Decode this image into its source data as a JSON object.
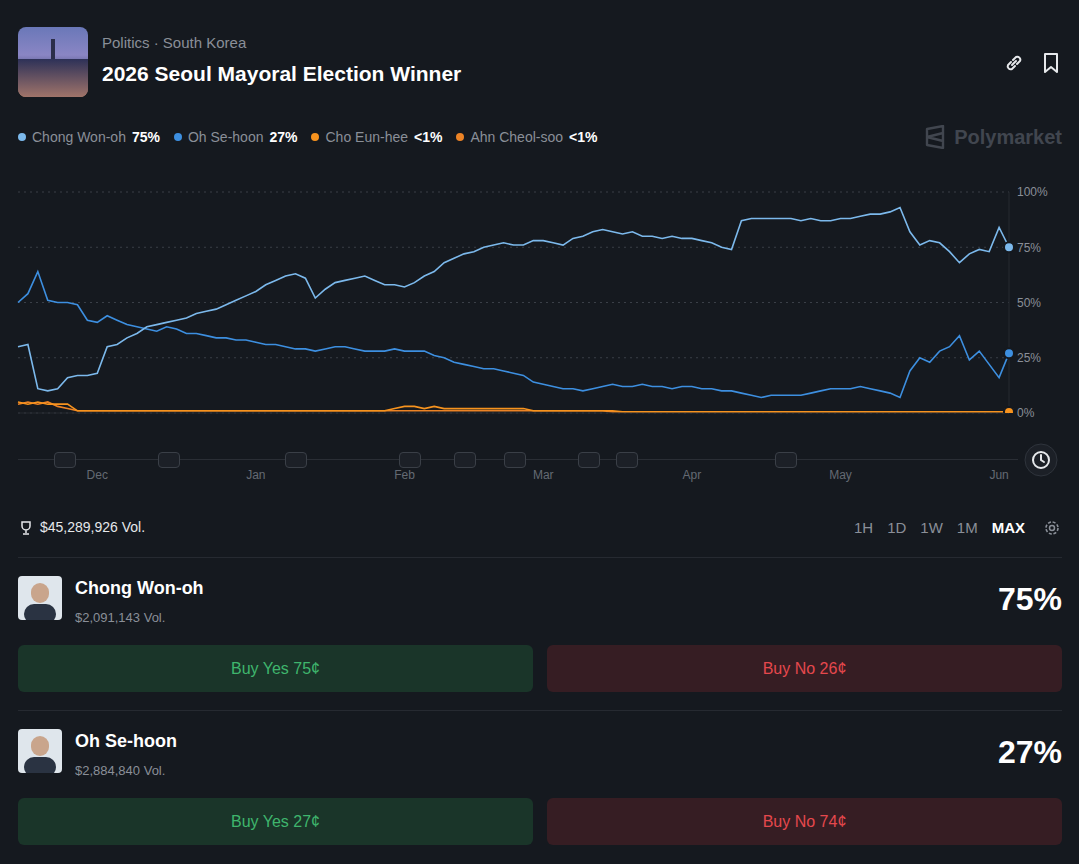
{
  "header": {
    "breadcrumb": "Politics · South Korea",
    "title": "2026 Seoul Mayoral Election Winner",
    "watermark": "Polymarket"
  },
  "chart_data": {
    "type": "line",
    "categories": [
      null,
      null,
      null,
      null,
      null,
      null,
      null,
      null,
      "Dec",
      null,
      null,
      null,
      null,
      null,
      null,
      null,
      null,
      null,
      null,
      null,
      null,
      null,
      null,
      null,
      "Jan",
      null,
      null,
      null,
      null,
      null,
      null,
      null,
      null,
      null,
      null,
      null,
      null,
      null,
      null,
      "Feb",
      null,
      null,
      null,
      null,
      null,
      null,
      null,
      null,
      null,
      null,
      null,
      null,
      null,
      "Mar",
      null,
      null,
      null,
      null,
      null,
      null,
      null,
      null,
      null,
      null,
      null,
      null,
      null,
      null,
      "Apr",
      null,
      null,
      null,
      null,
      null,
      null,
      null,
      null,
      null,
      null,
      null,
      null,
      null,
      null,
      "May",
      null,
      null,
      null,
      null,
      null,
      null,
      null,
      null,
      null,
      null,
      null,
      null,
      null,
      null,
      null,
      "Jun",
      null
    ],
    "series": [
      {
        "name": "Chong Won-oh",
        "color": "#7cb9ec",
        "legend_label": "75%",
        "values": [
          30,
          31,
          11,
          10,
          11,
          16,
          17,
          17,
          18,
          30,
          31,
          34,
          36,
          39,
          40,
          41,
          42,
          43,
          45,
          46,
          47,
          49,
          51,
          53,
          55,
          58,
          60,
          62,
          63,
          61,
          52,
          56,
          59,
          60,
          61,
          62,
          60,
          58,
          58,
          57,
          59,
          62,
          64,
          68,
          70,
          72,
          73,
          75,
          76,
          77,
          76,
          76,
          78,
          78,
          77,
          76,
          79,
          80,
          82,
          83,
          82,
          81,
          82,
          80,
          80,
          79,
          80,
          79,
          79,
          78,
          77,
          75,
          74,
          87,
          88,
          88,
          88,
          88,
          88,
          87,
          88,
          87,
          87,
          88,
          88,
          89,
          90,
          90,
          91,
          93,
          82,
          76,
          78,
          77,
          73,
          68,
          72,
          74,
          73,
          84,
          75
        ]
      },
      {
        "name": "Oh Se-hoon",
        "color": "#3d8fe0",
        "legend_label": "27%",
        "values": [
          50,
          54,
          64,
          51,
          50,
          50,
          49,
          42,
          41,
          44,
          42,
          40,
          39,
          38,
          37,
          39,
          38,
          36,
          36,
          35,
          34,
          34,
          33,
          33,
          32,
          31,
          31,
          30,
          29,
          29,
          28,
          29,
          30,
          30,
          29,
          28,
          28,
          28,
          29,
          28,
          28,
          28,
          26,
          25,
          23,
          22,
          21,
          20,
          20,
          19,
          18,
          17,
          14,
          13,
          12,
          11,
          11,
          10,
          11,
          12,
          13,
          12,
          12,
          13,
          12,
          12,
          11,
          12,
          12,
          11,
          11,
          10,
          10,
          9,
          8,
          7,
          8,
          8,
          8,
          8,
          9,
          10,
          11,
          11,
          11,
          12,
          11,
          10,
          9,
          7,
          19,
          25,
          23,
          28,
          30,
          35,
          24,
          28,
          22,
          16,
          27
        ]
      },
      {
        "name": "Cho Eun-hee",
        "color": "#f7931e",
        "legend_label": "<1%",
        "values": [
          5,
          4,
          5,
          4,
          4,
          4,
          1,
          1,
          1,
          1,
          1,
          1,
          1,
          1,
          1,
          1,
          1,
          1,
          1,
          1,
          1,
          1,
          1,
          1,
          1,
          1,
          1,
          1,
          1,
          1,
          1,
          1,
          1,
          1,
          1,
          1,
          1,
          1,
          2,
          3,
          3,
          2,
          3,
          2,
          2,
          2,
          2,
          2,
          2,
          2,
          2,
          2,
          1,
          1,
          1,
          1,
          1,
          1,
          1,
          1,
          1,
          0.5,
          0.5,
          0.5,
          0.5,
          0.5,
          0.5,
          0.5,
          0.5,
          0.5,
          0.5,
          0.5,
          0.5,
          0.5,
          0.5,
          0.5,
          0.5,
          0.5,
          0.5,
          0.5,
          0.5,
          0.5,
          0.5,
          0.5,
          0.5,
          0.5,
          0.5,
          0.5,
          0.5,
          0.5,
          0.5,
          0.5,
          0.5,
          0.5,
          0.5,
          0.5,
          0.5,
          0.5,
          0.5,
          0.5,
          0.5
        ]
      },
      {
        "name": "Ahn Cheol-soo",
        "color": "#ec8326",
        "legend_label": "<1%",
        "values": [
          4,
          5,
          4,
          5,
          3,
          2,
          1,
          1,
          1,
          1,
          1,
          1,
          1,
          1,
          1,
          1,
          1,
          1,
          1,
          1,
          1,
          1,
          1,
          1,
          1,
          1,
          1,
          1,
          1,
          1,
          1,
          1,
          1,
          1,
          1,
          1,
          1,
          1,
          1,
          1,
          1,
          1,
          1,
          1,
          1,
          1,
          1,
          1,
          1,
          1,
          1,
          1,
          1,
          1,
          1,
          1,
          1,
          1,
          1,
          1,
          0.5,
          0.5,
          0.5,
          0.5,
          0.5,
          0.5,
          0.5,
          0.5,
          0.5,
          0.5,
          0.5,
          0.5,
          0.5,
          0.5,
          0.5,
          0.5,
          0.5,
          0.5,
          0.5,
          0.5,
          0.5,
          0.5,
          0.5,
          0.5,
          0.5,
          0.5,
          0.5,
          0.5,
          0.5,
          0.5,
          0.5,
          0.5,
          0.5,
          0.5,
          0.5,
          0.5,
          0.5,
          0.5,
          0.5,
          0.5,
          0.5
        ]
      }
    ],
    "ylim": [
      0,
      100
    ],
    "yticks": [
      {
        "value": 0,
        "label": "0%"
      },
      {
        "value": 25,
        "label": "25%"
      },
      {
        "value": 50,
        "label": "50%"
      },
      {
        "value": 75,
        "label": "75%"
      },
      {
        "value": 100,
        "label": "100%"
      }
    ],
    "grid": true,
    "marker": "last",
    "legend": "top"
  },
  "volume": "$45,289,926 Vol.",
  "time_ranges": {
    "options": [
      "1H",
      "1D",
      "1W",
      "1M",
      "MAX"
    ],
    "selected": "MAX"
  },
  "outcomes": [
    {
      "name": "Chong Won-oh",
      "volume": "$2,091,143 Vol.",
      "chance": "75%",
      "buy_yes": "Buy Yes 75¢",
      "buy_no": "Buy No 26¢"
    },
    {
      "name": "Oh Se-hoon",
      "volume": "$2,884,840 Vol.",
      "chance": "27%",
      "buy_yes": "Buy Yes 27¢",
      "buy_no": "Buy No 74¢"
    }
  ]
}
